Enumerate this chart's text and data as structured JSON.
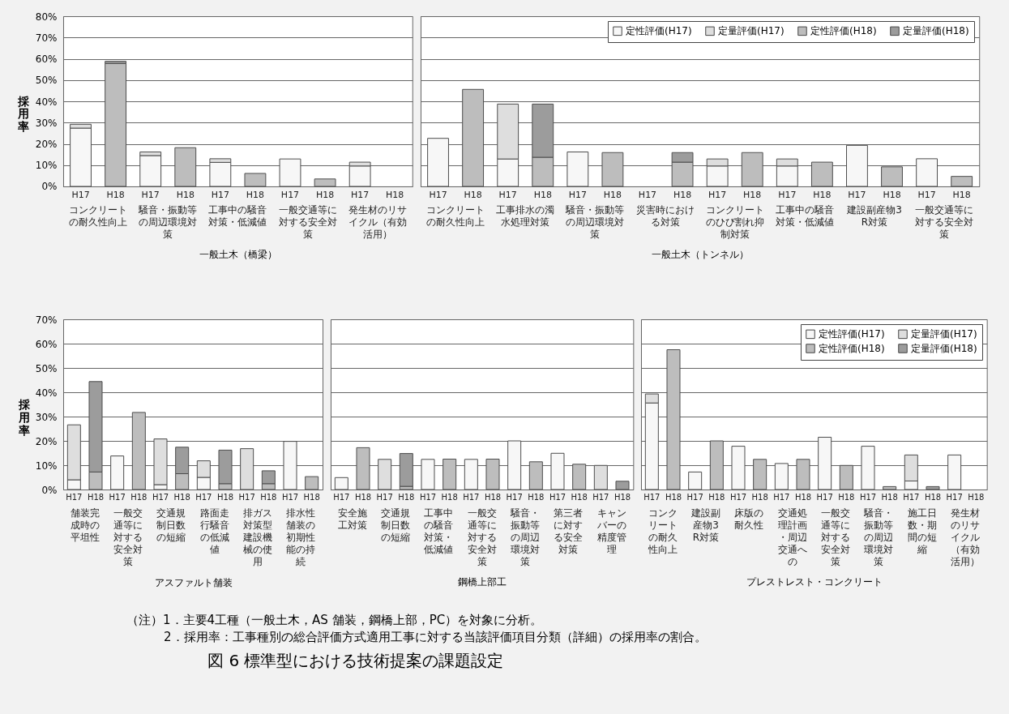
{
  "chart_data": [
    {
      "type": "bar",
      "stacked": true,
      "ylabel": "採用率",
      "xlabel": "一般土木（橋梁）",
      "ylim": [
        0,
        80
      ],
      "grid": "y",
      "yticks": [
        {
          "value": 0,
          "label": "0%"
        },
        {
          "value": 10,
          "label": "10%"
        },
        {
          "value": 20,
          "label": "20%"
        },
        {
          "value": 30,
          "label": "30%"
        },
        {
          "value": 40,
          "label": "40%"
        },
        {
          "value": 50,
          "label": "50%"
        },
        {
          "value": 60,
          "label": "60%"
        },
        {
          "value": 70,
          "label": "70%"
        },
        {
          "value": 80,
          "label": "80%"
        }
      ],
      "categories": [
        "H17",
        "H18",
        "H17",
        "H18",
        "H17",
        "H18",
        "H17",
        "H18",
        "H17",
        "H18"
      ],
      "annotations": [
        "コンクリートの耐久性向上",
        "騒音・振動等の周辺環境対策",
        "工事中の騒音対策・低減値",
        "一般交通等に対する安全対策",
        "発生材のリサイクル（有効活用）"
      ],
      "series": [
        {
          "color": "#f7f7f7",
          "values": [
            27.4,
            null,
            14.5,
            null,
            11.3,
            null,
            12.9,
            null,
            9.6,
            null
          ]
        },
        {
          "color": "#dedede",
          "values": [
            1.8,
            null,
            1.7,
            null,
            1.7,
            null,
            null,
            null,
            1.8,
            null
          ]
        },
        {
          "color": "#bdbdbd",
          "values": [
            null,
            57.8,
            null,
            18.2,
            null,
            6.1,
            null,
            3.5,
            null,
            null
          ]
        },
        {
          "color": "#9c9c9c",
          "values": [
            null,
            1.0,
            null,
            null,
            null,
            null,
            null,
            null,
            null,
            null
          ]
        }
      ]
    },
    {
      "type": "bar",
      "stacked": true,
      "xlabel": "一般土木（トンネル）",
      "ylim": [
        0,
        80
      ],
      "grid": "y",
      "tick_labels": "x",
      "legend": "top right",
      "yticks": [
        {
          "value": 0,
          "label": "0%"
        },
        {
          "value": 10,
          "label": "10%"
        },
        {
          "value": 20,
          "label": "20%"
        },
        {
          "value": 30,
          "label": "30%"
        },
        {
          "value": 40,
          "label": "40%"
        },
        {
          "value": 50,
          "label": "50%"
        },
        {
          "value": 60,
          "label": "60%"
        },
        {
          "value": 70,
          "label": "70%"
        },
        {
          "value": 80,
          "label": "80%"
        }
      ],
      "categories": [
        "H17",
        "H18",
        "H17",
        "H18",
        "H17",
        "H18",
        "H17",
        "H18",
        "H17",
        "H18",
        "H17",
        "H18",
        "H17",
        "H18",
        "H17",
        "H18"
      ],
      "annotations": [
        "コンクリートの耐久性向上",
        "工事排水の濁水処理対策",
        "騒音・振動等の周辺環境対策",
        "災害時における対策",
        "コンクリートのひび割れ抑制対策",
        "工事中の騒音対策・低減値",
        "建設副産物3R対策",
        "一般交通等に対する安全対策"
      ],
      "series": [
        {
          "name": "定性評価(H17)",
          "color": "#f7f7f7",
          "values": [
            22.6,
            null,
            12.9,
            null,
            16.2,
            null,
            null,
            null,
            9.6,
            null,
            9.6,
            null,
            19.3,
            null,
            13.0,
            null
          ]
        },
        {
          "name": "定量評価(H17)",
          "color": "#dedede",
          "values": [
            null,
            null,
            25.8,
            null,
            null,
            null,
            null,
            null,
            3.3,
            null,
            3.3,
            null,
            null,
            null,
            null,
            null
          ]
        },
        {
          "name": "定性評価(H18)",
          "color": "#bdbdbd",
          "values": [
            null,
            45.6,
            null,
            13.7,
            null,
            15.9,
            null,
            11.4,
            null,
            15.9,
            null,
            11.4,
            null,
            9.2,
            null,
            4.7
          ]
        },
        {
          "name": "定量評価(H18)",
          "color": "#9c9c9c",
          "values": [
            null,
            null,
            null,
            25.0,
            null,
            null,
            null,
            4.5,
            null,
            null,
            null,
            null,
            null,
            null,
            null,
            null
          ]
        }
      ]
    },
    {
      "type": "bar",
      "stacked": true,
      "ylabel": "採用率",
      "xlabel": "アスファルト舗装",
      "ylim": [
        0,
        70
      ],
      "grid": "y",
      "yticks": [
        {
          "value": 0,
          "label": "0%"
        },
        {
          "value": 10,
          "label": "10%"
        },
        {
          "value": 20,
          "label": "20%"
        },
        {
          "value": 30,
          "label": "30%"
        },
        {
          "value": 40,
          "label": "40%"
        },
        {
          "value": 50,
          "label": "50%"
        },
        {
          "value": 60,
          "label": "60%"
        },
        {
          "value": 70,
          "label": "70%"
        }
      ],
      "categories": [
        "H17",
        "H18",
        "H17",
        "H18",
        "H17",
        "H18",
        "H17",
        "H18",
        "H17",
        "H18",
        "H17",
        "H18"
      ],
      "annotations": [
        "舗装完成時の平坦性",
        "一般交通等に対する安全対策",
        "交通規制日数の短縮",
        "路面走行騒音の低減値",
        "排ガス対策型建設機械の使用",
        "排水性舗装の初期性能の持続"
      ],
      "series": [
        {
          "color": "#f7f7f7",
          "values": [
            4.0,
            null,
            13.8,
            null,
            2.0,
            null,
            5.0,
            null,
            null,
            null,
            19.8,
            null
          ]
        },
        {
          "color": "#dedede",
          "values": [
            22.6,
            null,
            null,
            null,
            18.8,
            null,
            6.8,
            null,
            16.8,
            null,
            null,
            null
          ]
        },
        {
          "color": "#bdbdbd",
          "values": [
            null,
            7.2,
            null,
            31.7,
            null,
            6.5,
            null,
            2.4,
            null,
            2.4,
            null,
            5.3
          ]
        },
        {
          "color": "#9c9c9c",
          "values": [
            null,
            37.2,
            null,
            null,
            null,
            10.9,
            null,
            13.8,
            null,
            5.3,
            null,
            null
          ]
        }
      ]
    },
    {
      "type": "bar",
      "stacked": true,
      "xlabel": "鋼橋上部工",
      "ylim": [
        0,
        70
      ],
      "grid": "y",
      "tick_labels": "x",
      "yticks": [
        {
          "value": 0,
          "label": "0%"
        },
        {
          "value": 10,
          "label": "10%"
        },
        {
          "value": 20,
          "label": "20%"
        },
        {
          "value": 30,
          "label": "30%"
        },
        {
          "value": 40,
          "label": "40%"
        },
        {
          "value": 50,
          "label": "50%"
        },
        {
          "value": 60,
          "label": "60%"
        },
        {
          "value": 70,
          "label": "70%"
        }
      ],
      "categories": [
        "H17",
        "H18",
        "H17",
        "H18",
        "H17",
        "H18",
        "H17",
        "H18",
        "H17",
        "H18",
        "H17",
        "H18",
        "H17",
        "H18"
      ],
      "annotations": [
        "安全施工対策",
        "交通規制日数の短縮",
        "工事中の騒音対策・低減値",
        "一般交通等に対する安全対策",
        "騒音・振動等の周辺環境対策",
        "第三者に対する安全対策",
        "キャンバーの精度管理"
      ],
      "series": [
        {
          "color": "#f7f7f7",
          "values": [
            4.9,
            null,
            null,
            null,
            12.4,
            null,
            12.4,
            null,
            20.0,
            null,
            14.9,
            null,
            null,
            null
          ]
        },
        {
          "color": "#dedede",
          "values": [
            null,
            null,
            12.4,
            null,
            null,
            null,
            null,
            null,
            null,
            null,
            null,
            null,
            9.9,
            null
          ]
        },
        {
          "color": "#bdbdbd",
          "values": [
            null,
            17.2,
            null,
            1.3,
            null,
            12.5,
            null,
            12.5,
            null,
            11.4,
            null,
            10.4,
            null,
            null
          ]
        },
        {
          "color": "#9c9c9c",
          "values": [
            null,
            null,
            null,
            13.5,
            null,
            null,
            null,
            null,
            null,
            null,
            null,
            null,
            null,
            3.4
          ]
        }
      ]
    },
    {
      "type": "bar",
      "stacked": true,
      "xlabel": "プレストレスト・コンクリート",
      "ylim": [
        0,
        70
      ],
      "grid": "y",
      "tick_labels": "x",
      "legend": "top right",
      "yticks": [
        {
          "value": 0,
          "label": "0%"
        },
        {
          "value": 10,
          "label": "10%"
        },
        {
          "value": 20,
          "label": "20%"
        },
        {
          "value": 30,
          "label": "30%"
        },
        {
          "value": 40,
          "label": "40%"
        },
        {
          "value": 50,
          "label": "50%"
        },
        {
          "value": 60,
          "label": "60%"
        },
        {
          "value": 70,
          "label": "70%"
        }
      ],
      "categories": [
        "H17",
        "H18",
        "H17",
        "H18",
        "H17",
        "H18",
        "H17",
        "H18",
        "H17",
        "H18",
        "H17",
        "H18",
        "H17",
        "H18",
        "H17",
        "H18"
      ],
      "annotations": [
        "コンクリートの耐久性向上",
        "建設副産物3R対策",
        "床版の耐久性",
        "交通処理計画・周辺交通への",
        "一般交通等に対する安全対策",
        "騒音・振動等の周辺環境対策",
        "施工日数・期間の短縮",
        "発生材のリサイクル（有効活用）"
      ],
      "series": [
        {
          "name": "定性評価(H17)",
          "color": "#f7f7f7",
          "values": [
            35.6,
            null,
            7.2,
            null,
            17.8,
            null,
            10.7,
            null,
            21.5,
            null,
            17.8,
            null,
            3.5,
            null,
            14.2,
            null
          ]
        },
        {
          "name": "定量評価(H17)",
          "color": "#dedede",
          "values": [
            3.7,
            null,
            null,
            null,
            null,
            null,
            null,
            null,
            null,
            null,
            null,
            null,
            10.7,
            null,
            null,
            null
          ]
        },
        {
          "name": "定性評価(H18)",
          "color": "#bdbdbd",
          "values": [
            null,
            57.5,
            null,
            20.0,
            null,
            12.4,
            null,
            12.4,
            null,
            9.9,
            null,
            1.2,
            null,
            null,
            null,
            null
          ]
        },
        {
          "name": "定量評価(H18)",
          "color": "#9c9c9c",
          "values": [
            null,
            null,
            null,
            null,
            null,
            null,
            null,
            null,
            null,
            null,
            null,
            null,
            null,
            1.2,
            null,
            null
          ]
        }
      ]
    },
    {
      "type": "other",
      "title": "図 6 標準型における技術提案の課題設定",
      "annotations": [
        "（注）1．主要4工種（一般土木，AS 舗装，鋼橋上部，PC）を対象に分析。",
        "2．採用率：工事種別の総合評価方式適用工事に対する当該評価項目分類（詳細）の採用率の割合。"
      ]
    }
  ]
}
